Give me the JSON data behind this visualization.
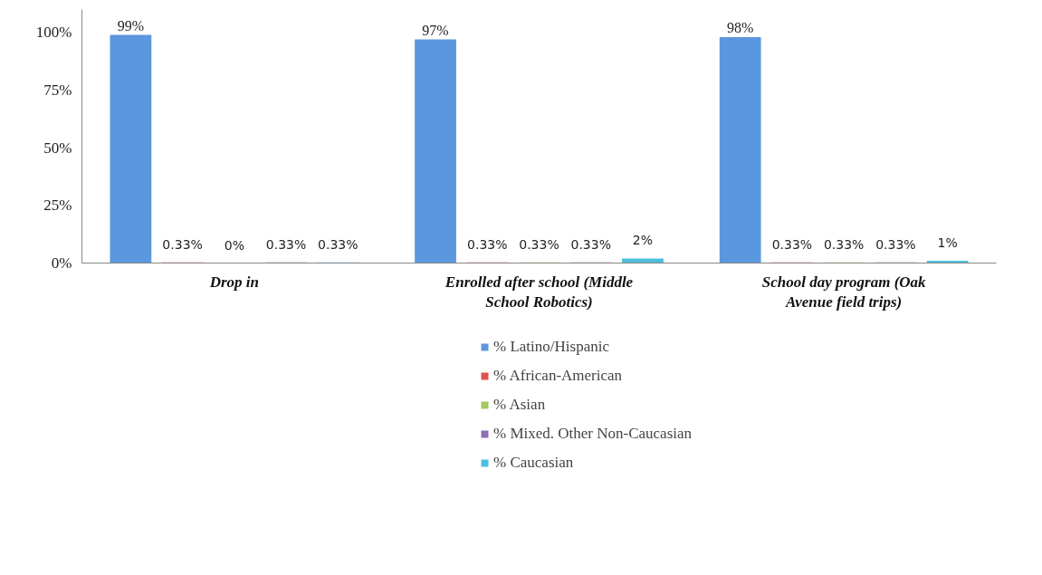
{
  "chart_data": {
    "type": "bar",
    "categories": [
      "Drop in",
      "Enrolled after school (Middle School Robotics)",
      "School day program (Oak Avenue field trips)"
    ],
    "series": [
      {
        "name": "% Latino/Hispanic",
        "color": "#5b97de",
        "values": [
          99,
          97,
          98
        ],
        "value_labels": [
          "99%",
          "97%",
          "98%"
        ]
      },
      {
        "name": "% African-American",
        "color": "#e0524f",
        "values": [
          0.33,
          0.33,
          0.33
        ],
        "value_labels": [
          "0.33%",
          "0.33%",
          "0.33%"
        ]
      },
      {
        "name": "% Asian",
        "color": "#a5c85f",
        "values": [
          0,
          0.33,
          0.33
        ],
        "value_labels": [
          "0%",
          "0.33%",
          "0.33%"
        ]
      },
      {
        "name": "% Mixed. Other Non-Caucasian",
        "color": "#8c6fb5",
        "values": [
          0.33,
          0.33,
          0.33
        ],
        "value_labels": [
          "0.33%",
          "0.33%",
          "0.33%"
        ]
      },
      {
        "name": "% Caucasian",
        "color": "#4bbfdc",
        "values": [
          0.33,
          2,
          1
        ],
        "value_labels": [
          "0.33%",
          "2%",
          "1%"
        ]
      }
    ],
    "ylim": [
      0,
      110
    ],
    "yticks": [
      {
        "value": 0,
        "label": "0%"
      },
      {
        "value": 25,
        "label": "25%"
      },
      {
        "value": 50,
        "label": "50%"
      },
      {
        "value": 75,
        "label": "75%"
      },
      {
        "value": 100,
        "label": "100%"
      }
    ],
    "grid": false,
    "legend": "bottom"
  }
}
